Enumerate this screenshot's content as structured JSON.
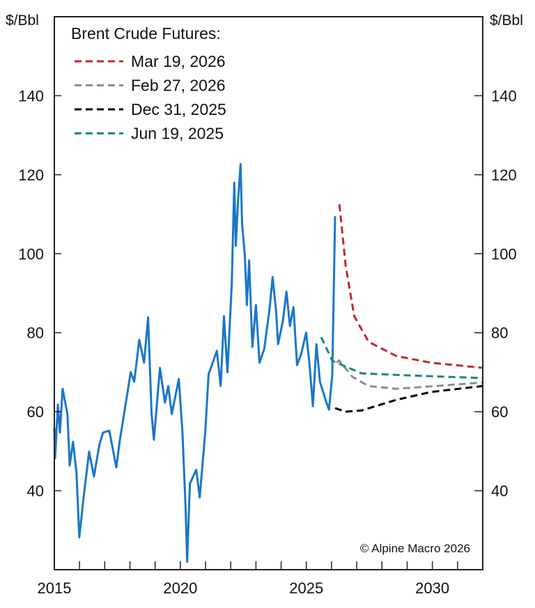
{
  "chart_data": {
    "type": "line",
    "title": "",
    "ylabel_left": "$/Bbl",
    "ylabel_right": "$/Bbl",
    "xlim": [
      2015,
      2032
    ],
    "ylim": [
      20,
      160
    ],
    "x_ticks": [
      2015,
      2020,
      2025,
      2030
    ],
    "x_minor_ticks_every": 1,
    "y_ticks": [
      40,
      60,
      80,
      100,
      120,
      140
    ],
    "grid": false,
    "legend": {
      "title": "Brent Crude Futures:",
      "placement": "top-left"
    },
    "annotation": "© Alpine Macro 2026",
    "series": [
      {
        "color": "#1a76c8",
        "style": "solid",
        "points": [
          [
            2015.0,
            56
          ],
          [
            2015.03,
            48.2
          ],
          [
            2015.14,
            61.8
          ],
          [
            2015.22,
            54.7
          ],
          [
            2015.33,
            65.8
          ],
          [
            2015.52,
            59.4
          ],
          [
            2015.61,
            46.4
          ],
          [
            2015.74,
            52.4
          ],
          [
            2015.88,
            44.6
          ],
          [
            2015.99,
            28.2
          ],
          [
            2016.16,
            38.3
          ],
          [
            2016.38,
            49.9
          ],
          [
            2016.57,
            43.6
          ],
          [
            2016.79,
            51.7
          ],
          [
            2016.93,
            54.7
          ],
          [
            2017.18,
            55.2
          ],
          [
            2017.46,
            45.9
          ],
          [
            2017.59,
            52.4
          ],
          [
            2017.87,
            63.5
          ],
          [
            2018.03,
            70
          ],
          [
            2018.17,
            67.6
          ],
          [
            2018.37,
            78.2
          ],
          [
            2018.56,
            72.4
          ],
          [
            2018.72,
            83.9
          ],
          [
            2018.86,
            59.4
          ],
          [
            2018.95,
            52.9
          ],
          [
            2019.19,
            71.1
          ],
          [
            2019.39,
            62.3
          ],
          [
            2019.52,
            66.5
          ],
          [
            2019.66,
            59.4
          ],
          [
            2019.94,
            68.3
          ],
          [
            2020.08,
            55.2
          ],
          [
            2020.21,
            35.3
          ],
          [
            2020.27,
            22
          ],
          [
            2020.38,
            41.8
          ],
          [
            2020.63,
            45.3
          ],
          [
            2020.77,
            38.3
          ],
          [
            2020.99,
            55
          ],
          [
            2021.12,
            69.4
          ],
          [
            2021.45,
            75.4
          ],
          [
            2021.6,
            66.5
          ],
          [
            2021.73,
            84.2
          ],
          [
            2021.87,
            70
          ],
          [
            2022.04,
            92.3
          ],
          [
            2022.14,
            118
          ],
          [
            2022.2,
            102
          ],
          [
            2022.28,
            112.5
          ],
          [
            2022.39,
            122.7
          ],
          [
            2022.45,
            107.7
          ],
          [
            2022.56,
            99.4
          ],
          [
            2022.64,
            87
          ],
          [
            2022.73,
            98.3
          ],
          [
            2022.86,
            76.4
          ],
          [
            2023.0,
            87
          ],
          [
            2023.14,
            72.4
          ],
          [
            2023.33,
            75.9
          ],
          [
            2023.55,
            86.5
          ],
          [
            2023.66,
            94.1
          ],
          [
            2023.8,
            85.3
          ],
          [
            2023.88,
            77.1
          ],
          [
            2024.07,
            83
          ],
          [
            2024.21,
            90.4
          ],
          [
            2024.35,
            81.7
          ],
          [
            2024.49,
            86.5
          ],
          [
            2024.63,
            71.8
          ],
          [
            2024.8,
            74.7
          ],
          [
            2024.99,
            80
          ],
          [
            2025.12,
            72.4
          ],
          [
            2025.26,
            61.4
          ],
          [
            2025.4,
            77.1
          ],
          [
            2025.54,
            67.6
          ],
          [
            2025.76,
            63
          ],
          [
            2025.9,
            60.5
          ],
          [
            2026.03,
            69.4
          ],
          [
            2026.14,
            109.5
          ]
        ]
      },
      {
        "name": "Mar 19, 2026",
        "color": "#c0282d",
        "style": "dashed",
        "points": [
          [
            2026.31,
            112.5
          ],
          [
            2026.56,
            97
          ],
          [
            2026.9,
            84.2
          ],
          [
            2027.47,
            77.7
          ],
          [
            2028.57,
            74.1
          ],
          [
            2029.95,
            72.4
          ],
          [
            2032,
            71.1
          ]
        ]
      },
      {
        "name": "Feb 27, 2026",
        "color": "#8c8c8c",
        "style": "dashed",
        "points": [
          [
            2026.2,
            72.4
          ],
          [
            2026.3,
            73
          ],
          [
            2026.83,
            68.8
          ],
          [
            2027.47,
            66.5
          ],
          [
            2028.57,
            65.8
          ],
          [
            2029.95,
            66.4
          ],
          [
            2032,
            67.4
          ]
        ]
      },
      {
        "name": "Dec 31, 2025",
        "color": "#000000",
        "style": "dashed",
        "points": [
          [
            2026.14,
            60.9
          ],
          [
            2026.56,
            60
          ],
          [
            2027.19,
            60.3
          ],
          [
            2028.57,
            63
          ],
          [
            2029.95,
            65
          ],
          [
            2032,
            66.5
          ]
        ]
      },
      {
        "name": "Jun 19, 2025",
        "color": "#17877e",
        "style": "dashed",
        "points": [
          [
            2025.59,
            78.9
          ],
          [
            2026.03,
            72.9
          ],
          [
            2027.19,
            69.7
          ],
          [
            2029.04,
            69.2
          ],
          [
            2032,
            68.5
          ]
        ]
      }
    ]
  }
}
